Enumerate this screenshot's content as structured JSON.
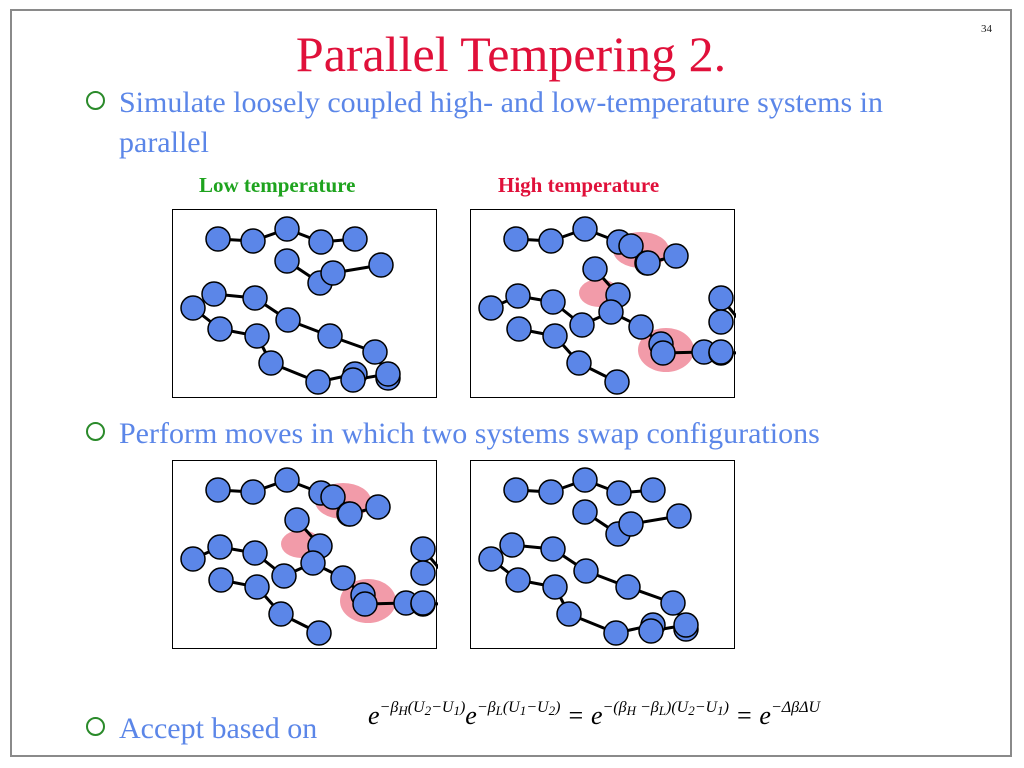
{
  "page_number": "34",
  "title": "Parallel Tempering 2.",
  "bullets": [
    "Simulate loosely coupled high- and low-temperature systems in parallel",
    "Perform moves in which two systems swap configurations",
    "Accept based on"
  ],
  "labels": {
    "low": "Low temperature",
    "high": "High temperature"
  },
  "colors": {
    "title": "#e0103a",
    "bullet_text": "#5b86e8",
    "bullet_marker": "#2a8a2a",
    "low_label": "#1ea31e",
    "high_label": "#e0103a",
    "bead_fill": "#5b86e8",
    "highlight": "#f08a9a"
  },
  "formula": {
    "t1": "e",
    "t1_exp": "−β",
    "t1_sub": "H",
    "t1_exp2": "(U",
    "t1_s2": "2",
    "t1_exp3": "−U",
    "t1_s3": "1",
    "t1_exp4": ")",
    "t2": "e",
    "t2_exp": "−β",
    "t2_sub": "L",
    "t2_exp2": "(U",
    "t2_s2": "1",
    "t2_exp3": "−U",
    "t2_s3": "2",
    "t2_exp4": ")",
    "eq1": " = e",
    "t3_exp": "−(β",
    "t3_sub": "H",
    "t3_exp2": " −β",
    "t3_sub2": "L",
    "t3_exp3": ")(U",
    "t3_s3": "2",
    "t3_exp4": "−U",
    "t3_s4": "1",
    "t3_exp5": ")",
    "eq2": " = e",
    "t4_exp": "−ΔβΔU"
  }
}
